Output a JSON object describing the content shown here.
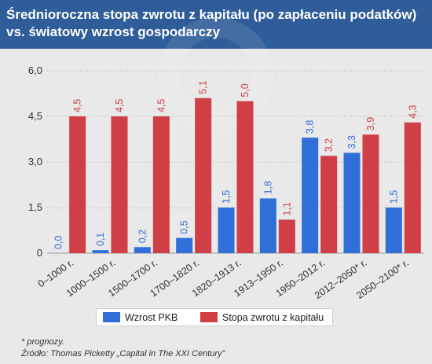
{
  "header": {
    "title_line1": "Średnioroczna stopa zwrotu z kapitału (po zapłaceniu podatków)",
    "title_line2": "vs. światowy wzrost gospodarczy"
  },
  "colors": {
    "header_bg": "#2f5d99",
    "series_blue": "#2f6fd7",
    "series_red": "#cf3f45",
    "background": "#e9e9e9"
  },
  "chart_data": {
    "type": "bar",
    "categories": [
      "0–1000 r.",
      "1000–1500 r.",
      "1500–1700 r.",
      "1700–1820 r.",
      "1820–1913 r.",
      "1913–1950 r.",
      "1950–2012 r.",
      "2012–2050* r.",
      "2050–2100* r."
    ],
    "series": [
      {
        "name": "Wzrost PKB",
        "color": "#2f6fd7",
        "values": [
          0.0,
          0.1,
          0.2,
          0.5,
          1.5,
          1.8,
          3.8,
          3.3,
          1.5
        ],
        "labels": [
          "0,0",
          "0,1",
          "0,2",
          "0,5",
          "1,5",
          "1,8",
          "3,8",
          "3,3",
          "1,5"
        ]
      },
      {
        "name": "Stopa zwrotu z kapitału",
        "color": "#cf3f45",
        "values": [
          4.5,
          4.5,
          4.5,
          5.1,
          5.0,
          1.1,
          3.2,
          3.9,
          4.3
        ],
        "labels": [
          "4,5",
          "4,5",
          "4,5",
          "5,1",
          "5,0",
          "1,1",
          "3,2",
          "3,9",
          "4,3"
        ]
      }
    ],
    "yticks": [
      0,
      1.5,
      3.0,
      4.5,
      6.0
    ],
    "ytick_labels": [
      "0",
      "1,5",
      "3,0",
      "4,5",
      "6,0"
    ],
    "ylim": [
      0,
      6
    ],
    "grid": true,
    "legend_position": "bottom"
  },
  "footnote": {
    "note": "* prognozy.",
    "source": "Źródło: Thomas Picketty „Capital in The XXI Century”"
  }
}
